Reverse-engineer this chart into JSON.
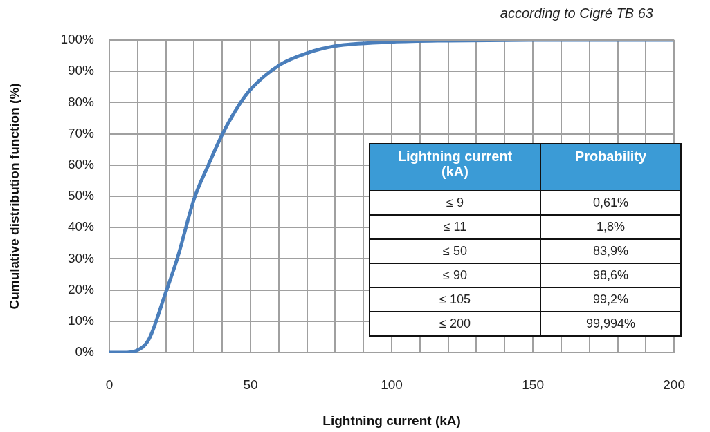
{
  "chart_data": {
    "type": "line",
    "xlabel": "Lightning current (kA)",
    "ylabel": "Cumulative distribution function (%)",
    "annotations": [
      "according to Cigré TB 63",
      "Lightning current (kA)",
      "Probability",
      "≤ 9",
      "0,61%",
      "≤ 11",
      "1,8%",
      "≤ 50",
      "83,9%",
      "≤ 90",
      "98,6%",
      "≤ 105",
      "99,2%",
      "≤ 200",
      "99,994%"
    ],
    "series": [
      {
        "color": "#4a7ebb",
        "x": [
          0,
          5,
          9.3,
          14.1,
          19.7,
          24.1,
          30.1,
          34.9,
          40.1,
          46.2,
          50.2,
          60.6,
          70.2,
          80.2,
          100.2,
          120,
          150,
          200
        ],
        "values": [
          0,
          0,
          0.5,
          4.4,
          18.5,
          30.2,
          49.4,
          59.7,
          70,
          79.6,
          84.4,
          92.2,
          95.9,
          98.1,
          99.4,
          99.8,
          100,
          100
        ]
      }
    ],
    "xlim": [
      0,
      200
    ],
    "xticks": [
      0,
      {
        "value": 10,
        "label": null
      },
      {
        "value": 20,
        "label": null
      },
      {
        "value": 30,
        "label": null
      },
      {
        "value": 40,
        "label": null
      },
      50,
      {
        "value": 60,
        "label": null
      },
      {
        "value": 70,
        "label": null
      },
      {
        "value": 80,
        "label": null
      },
      {
        "value": 90,
        "label": null
      },
      100,
      {
        "value": 110,
        "label": null
      },
      {
        "value": 120,
        "label": null
      },
      {
        "value": 130,
        "label": null
      },
      {
        "value": 140,
        "label": null
      },
      150,
      {
        "value": 160,
        "label": null
      },
      {
        "value": 170,
        "label": null
      },
      {
        "value": 180,
        "label": null
      },
      {
        "value": 190,
        "label": null
      },
      200
    ],
    "ylim": [
      0,
      100
    ],
    "yticks": [
      {
        "value": 0,
        "label": "0%"
      },
      {
        "value": 10,
        "label": "10%"
      },
      {
        "value": 20,
        "label": "20%"
      },
      {
        "value": 30,
        "label": "30%"
      },
      {
        "value": 40,
        "label": "40%"
      },
      {
        "value": 50,
        "label": "50%"
      },
      {
        "value": 60,
        "label": "60%"
      },
      {
        "value": 70,
        "label": "70%"
      },
      {
        "value": 80,
        "label": "80%"
      },
      {
        "value": 90,
        "label": "90%"
      },
      {
        "value": 100,
        "label": "100%"
      }
    ],
    "grid": true,
    "legend": false,
    "marker": "none",
    "line_style": "solid"
  }
}
